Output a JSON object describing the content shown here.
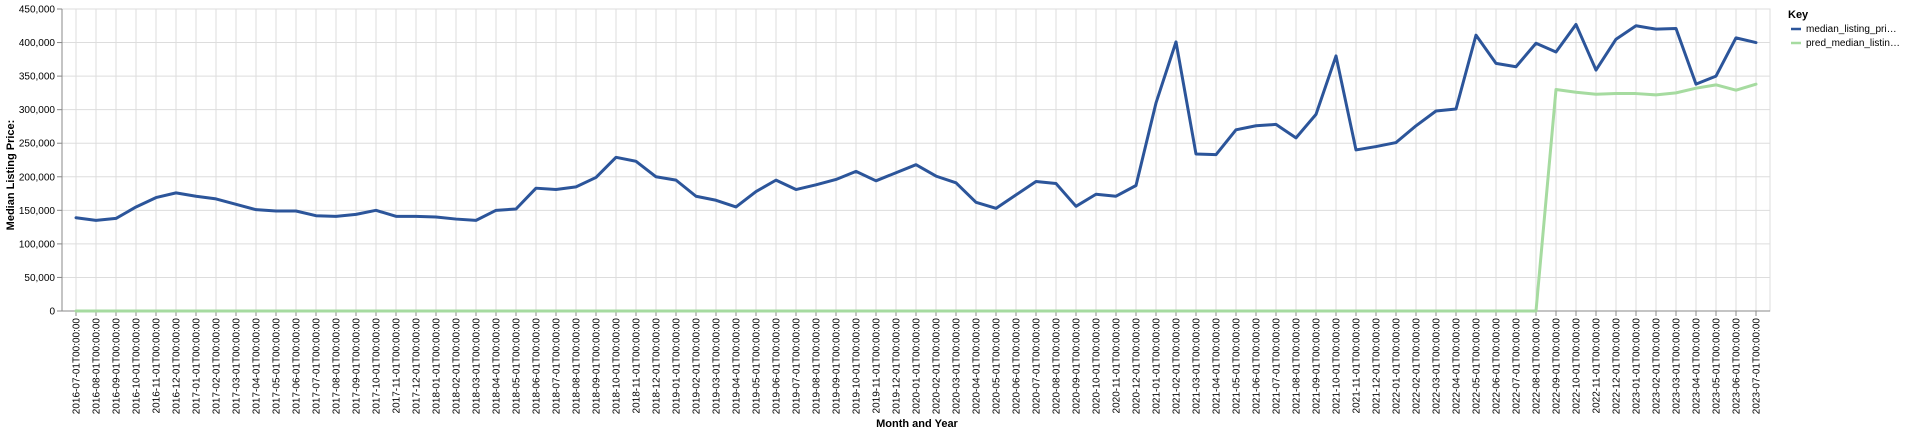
{
  "chart_data": {
    "type": "line",
    "title": "",
    "xlabel": "Month and Year",
    "ylabel": "Median Listing Price:",
    "ylim": [
      0,
      450000
    ],
    "yticks": [
      0,
      50000,
      100000,
      150000,
      200000,
      250000,
      300000,
      350000,
      400000,
      450000
    ],
    "ytick_labels": [
      "0",
      "50,000",
      "100,000",
      "150,000",
      "200,000",
      "250,000",
      "300,000",
      "350,000",
      "400,000",
      "450,000"
    ],
    "grid": true,
    "legend": {
      "title": "Key",
      "position": "top-right",
      "entries": [
        "median_listing_pri…",
        "pred_median_listin…"
      ]
    },
    "x": [
      "2016-07-01T00:00:00",
      "2016-08-01T00:00:00",
      "2016-09-01T00:00:00",
      "2016-10-01T00:00:00",
      "2016-11-01T00:00:00",
      "2016-12-01T00:00:00",
      "2017-01-01T00:00:00",
      "2017-02-01T00:00:00",
      "2017-03-01T00:00:00",
      "2017-04-01T00:00:00",
      "2017-05-01T00:00:00",
      "2017-06-01T00:00:00",
      "2017-07-01T00:00:00",
      "2017-08-01T00:00:00",
      "2017-09-01T00:00:00",
      "2017-10-01T00:00:00",
      "2017-11-01T00:00:00",
      "2017-12-01T00:00:00",
      "2018-01-01T00:00:00",
      "2018-02-01T00:00:00",
      "2018-03-01T00:00:00",
      "2018-04-01T00:00:00",
      "2018-05-01T00:00:00",
      "2018-06-01T00:00:00",
      "2018-07-01T00:00:00",
      "2018-08-01T00:00:00",
      "2018-09-01T00:00:00",
      "2018-10-01T00:00:00",
      "2018-11-01T00:00:00",
      "2018-12-01T00:00:00",
      "2019-01-01T00:00:00",
      "2019-02-01T00:00:00",
      "2019-03-01T00:00:00",
      "2019-04-01T00:00:00",
      "2019-05-01T00:00:00",
      "2019-06-01T00:00:00",
      "2019-07-01T00:00:00",
      "2019-08-01T00:00:00",
      "2019-09-01T00:00:00",
      "2019-10-01T00:00:00",
      "2019-11-01T00:00:00",
      "2019-12-01T00:00:00",
      "2020-01-01T00:00:00",
      "2020-02-01T00:00:00",
      "2020-03-01T00:00:00",
      "2020-04-01T00:00:00",
      "2020-05-01T00:00:00",
      "2020-06-01T00:00:00",
      "2020-07-01T00:00:00",
      "2020-08-01T00:00:00",
      "2020-09-01T00:00:00",
      "2020-10-01T00:00:00",
      "2020-11-01T00:00:00",
      "2020-12-01T00:00:00",
      "2021-01-01T00:00:00",
      "2021-02-01T00:00:00",
      "2021-03-01T00:00:00",
      "2021-04-01T00:00:00",
      "2021-05-01T00:00:00",
      "2021-06-01T00:00:00",
      "2021-07-01T00:00:00",
      "2021-08-01T00:00:00",
      "2021-09-01T00:00:00",
      "2021-10-01T00:00:00",
      "2021-11-01T00:00:00",
      "2021-12-01T00:00:00",
      "2022-01-01T00:00:00",
      "2022-02-01T00:00:00",
      "2022-03-01T00:00:00",
      "2022-04-01T00:00:00",
      "2022-05-01T00:00:00",
      "2022-06-01T00:00:00",
      "2022-07-01T00:00:00",
      "2022-08-01T00:00:00",
      "2022-09-01T00:00:00",
      "2022-10-01T00:00:00",
      "2022-11-01T00:00:00",
      "2022-12-01T00:00:00",
      "2023-01-01T00:00:00",
      "2023-02-01T00:00:00",
      "2023-03-01T00:00:00",
      "2023-04-01T00:00:00",
      "2023-05-01T00:00:00",
      "2023-06-01T00:00:00",
      "2023-07-01T00:00:00"
    ],
    "series": [
      {
        "name": "median_listing_pri…",
        "color": "#2c559a",
        "values": [
          139000,
          135000,
          138000,
          155000,
          169000,
          176000,
          171000,
          167000,
          159000,
          151000,
          149000,
          149000,
          142000,
          141000,
          144000,
          150000,
          141000,
          141000,
          140000,
          137000,
          135000,
          150000,
          152000,
          183000,
          181000,
          185000,
          199000,
          229000,
          223000,
          200000,
          195000,
          171000,
          165000,
          155000,
          178000,
          195000,
          181000,
          188000,
          196000,
          208000,
          194000,
          206000,
          218000,
          201000,
          191000,
          162000,
          153000,
          173000,
          193000,
          190000,
          156000,
          174000,
          171000,
          187000,
          310000,
          401000,
          234000,
          233000,
          270000,
          276000,
          278000,
          258000,
          293000,
          380000,
          240000,
          245000,
          251000,
          276000,
          298000,
          301000,
          411000,
          369000,
          364000,
          399000,
          386000,
          427000,
          359000,
          405000,
          425000,
          420000,
          421000,
          338000,
          350000,
          407000,
          400000
        ]
      },
      {
        "name": "pred_median_listin…",
        "color": "#a6dba0",
        "values": [
          0,
          0,
          0,
          0,
          0,
          0,
          0,
          0,
          0,
          0,
          0,
          0,
          0,
          0,
          0,
          0,
          0,
          0,
          0,
          0,
          0,
          0,
          0,
          0,
          0,
          0,
          0,
          0,
          0,
          0,
          0,
          0,
          0,
          0,
          0,
          0,
          0,
          0,
          0,
          0,
          0,
          0,
          0,
          0,
          0,
          0,
          0,
          0,
          0,
          0,
          0,
          0,
          0,
          0,
          0,
          0,
          0,
          0,
          0,
          0,
          0,
          0,
          0,
          0,
          0,
          0,
          0,
          0,
          0,
          0,
          0,
          0,
          0,
          0,
          330000,
          326000,
          323000,
          324000,
          324000,
          322000,
          325000,
          332000,
          337000,
          329000,
          338000
        ]
      }
    ]
  }
}
